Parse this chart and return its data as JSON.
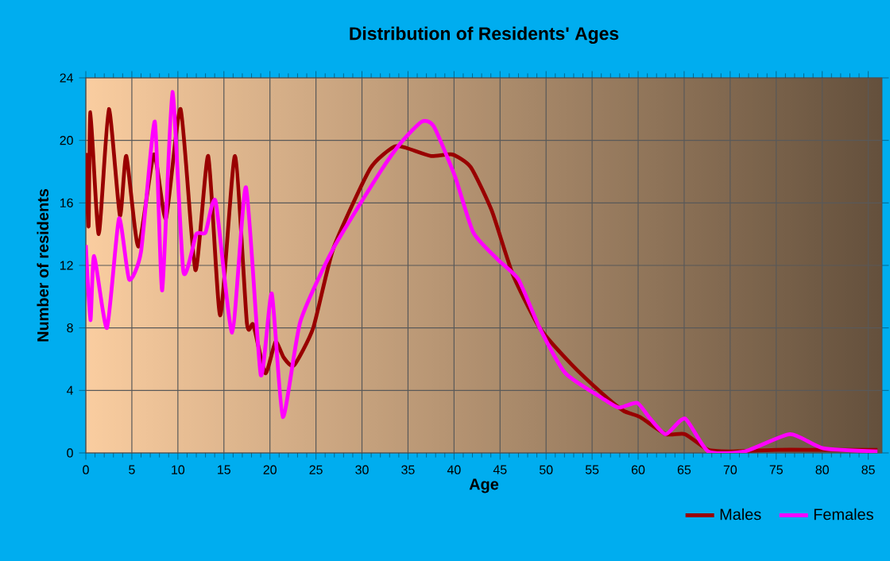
{
  "chart_data": {
    "type": "line",
    "title": "Distribution of Residents' Ages",
    "xlabel": "Age",
    "ylabel": "Number of residents",
    "xlim": [
      0,
      86.5
    ],
    "ylim": [
      0,
      24
    ],
    "xticks": [
      0,
      5,
      10,
      15,
      20,
      25,
      30,
      35,
      40,
      45,
      50,
      55,
      60,
      65,
      70,
      75,
      80,
      85
    ],
    "yticks": [
      0,
      4,
      8,
      12,
      16,
      20,
      24
    ],
    "grid": true,
    "legend": "bottom right",
    "line_style": "solid",
    "marker": "none",
    "series": [
      {
        "name": "Males",
        "color": "#990000",
        "x": [
          0,
          0.3,
          0.5,
          1.4,
          2.5,
          3.7,
          4.4,
          5.7,
          7.4,
          8.7,
          10.3,
          11.9,
          13.3,
          14.6,
          16.2,
          17.5,
          18.2,
          19.5,
          20.6,
          21.5,
          22.6,
          24.7,
          26.9,
          30.9,
          33.5,
          34.9,
          37.5,
          39.8,
          41.8,
          44.1,
          46.4,
          49.3,
          52.7,
          56.1,
          58.4,
          60.2,
          63.0,
          65.1,
          67.6,
          70,
          75,
          80,
          86
        ],
        "values": [
          19.2,
          14.5,
          21.8,
          14,
          22,
          15.2,
          19,
          13.2,
          19.1,
          15,
          22,
          11.7,
          19,
          8.8,
          19,
          8.3,
          8.2,
          5.1,
          7.1,
          6.1,
          5.6,
          8,
          13.1,
          18.2,
          19.6,
          19.5,
          19.0,
          19.1,
          18.3,
          15.5,
          11.4,
          8.0,
          5.7,
          3.8,
          2.7,
          2.3,
          1.2,
          1.2,
          0.2,
          0.1,
          0.2,
          0.2,
          0.2
        ]
      },
      {
        "name": "Females",
        "color": "#ff00ff",
        "x": [
          0,
          0.5,
          0.9,
          2.3,
          3.6,
          4.7,
          6.0,
          7.5,
          8.3,
          9.4,
          10.6,
          12.0,
          13.0,
          14.1,
          15.9,
          17.4,
          19.0,
          20.2,
          21.4,
          23.3,
          26.9,
          32,
          34.3,
          36.5,
          37.8,
          40.1,
          42.1,
          44.7,
          47,
          49.3,
          52.1,
          56.1,
          57.9,
          59.9,
          61.3,
          63.0,
          65.1,
          67.6,
          71.6,
          76.5,
          80.1,
          86
        ],
        "values": [
          13.3,
          8.5,
          12.6,
          8.0,
          15.0,
          11.1,
          12.9,
          21.2,
          10.4,
          23.1,
          11.6,
          14.0,
          14.1,
          16.1,
          7.7,
          17.0,
          5.0,
          10.2,
          2.3,
          8.4,
          13.1,
          18.0,
          19.9,
          21.2,
          20.9,
          17.7,
          14.1,
          12.4,
          11.1,
          8.0,
          5.1,
          3.5,
          2.9,
          3.2,
          2.2,
          1.2,
          2.2,
          0.1,
          0.1,
          1.2,
          0.3,
          0.1
        ]
      }
    ]
  }
}
